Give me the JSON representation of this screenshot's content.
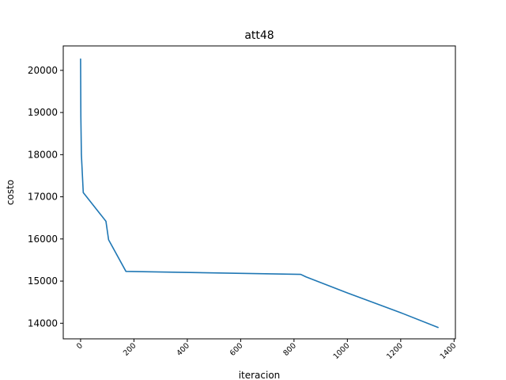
{
  "chart_data": {
    "type": "line",
    "title": "att48",
    "xlabel": "iteracion",
    "ylabel": "costo",
    "xlim": [
      -65,
      1405
    ],
    "ylim": [
      13630,
      20580
    ],
    "xticks": [
      0,
      200,
      400,
      600,
      800,
      1000,
      1200,
      1400
    ],
    "yticks": [
      14000,
      15000,
      16000,
      17000,
      18000,
      19000,
      20000
    ],
    "grid": false,
    "legend": "none",
    "series": [
      {
        "color": "#1f77b4",
        "x": [
          0,
          1,
          3,
          10,
          95,
          105,
          170,
          825,
          845,
          1000,
          1200,
          1340
        ],
        "y": [
          20270,
          18900,
          18000,
          17100,
          16420,
          15980,
          15230,
          15160,
          15100,
          14720,
          14250,
          13900
        ]
      }
    ]
  }
}
